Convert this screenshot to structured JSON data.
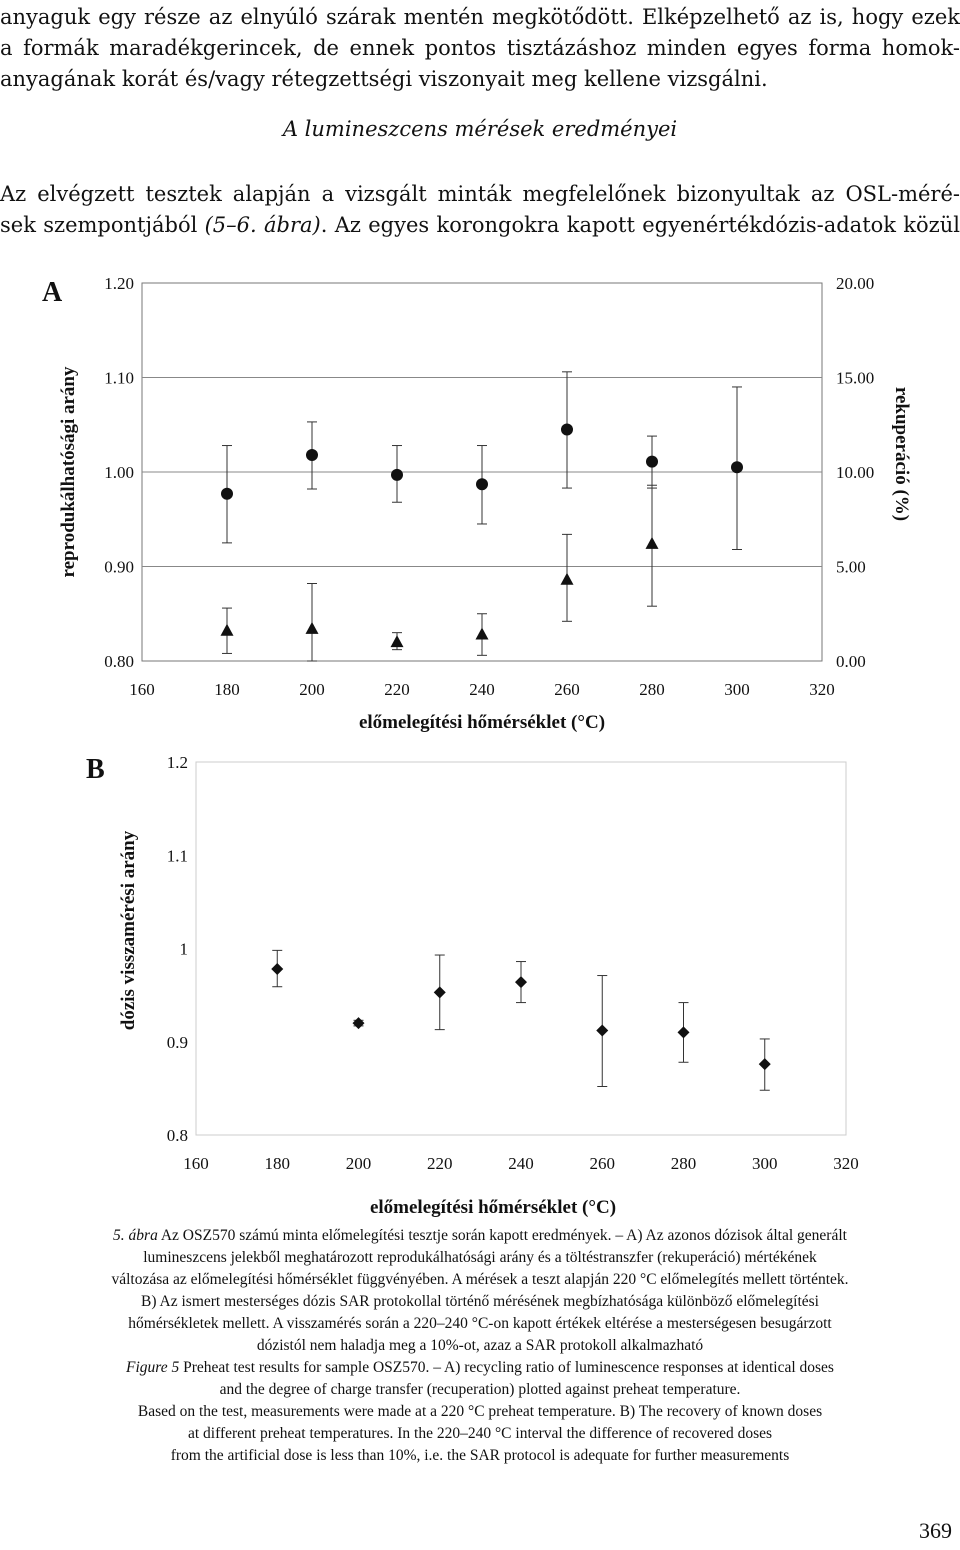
{
  "top_paragraph": {
    "lines": [
      "anyaguk egy része az elnyúló szárak mentén megkötődött. Elképzelhető az is, hogy ezek",
      "a formák maradékgerincek, de ennek pontos tisztázáshoz minden egyes forma homok-",
      "anyagának korát és/vagy rétegzettségi viszonyait meg kellene vizsgálni."
    ]
  },
  "section_heading": "A lumineszcens mérések eredményei",
  "second_paragraph": {
    "line1": "Az elvégzett tesztek alapján a vizsgált minták megfelelőnek bizonyultak az OSL-méré-",
    "line2_start": "sek szempontjából ",
    "line2_ref": "(5–6. ábra)",
    "line2_end": ". Az egyes korongokra kapott egyenértékdózis-adatok közül"
  },
  "chart_data": [
    {
      "type": "scatter",
      "panel_label": "A",
      "xlabel": "előmelegítési hőmérséklet (°C)",
      "ylabel": "reprodukálhatósági arány",
      "y2label": "rekuperáció (%)",
      "xlim": [
        160,
        320
      ],
      "xticks": [
        "160",
        "180",
        "200",
        "220",
        "240",
        "260",
        "280",
        "300",
        "320"
      ],
      "ylim": [
        0.8,
        1.2
      ],
      "yticks": [
        "0.80",
        "0.90",
        "1.00",
        "1.10",
        "1.20"
      ],
      "y2lim": [
        0,
        20
      ],
      "y2ticks": [
        "0.00",
        "5.00",
        "10.00",
        "15.00",
        "20.00"
      ],
      "grid": "horizontal",
      "series": [
        {
          "marker": "circle",
          "axis": "left",
          "points": [
            {
              "x": 180,
              "y": 0.977,
              "lo": 0.925,
              "hi": 1.028
            },
            {
              "x": 200,
              "y": 1.018,
              "lo": 0.982,
              "hi": 1.053
            },
            {
              "x": 220,
              "y": 0.997,
              "lo": 0.968,
              "hi": 1.028
            },
            {
              "x": 240,
              "y": 0.987,
              "lo": 0.945,
              "hi": 1.028
            },
            {
              "x": 260,
              "y": 1.045,
              "lo": 0.983,
              "hi": 1.106
            },
            {
              "x": 280,
              "y": 1.011,
              "lo": 0.983,
              "hi": 1.038
            },
            {
              "x": 300,
              "y": 1.005,
              "lo": 0.918,
              "hi": 1.09
            }
          ]
        },
        {
          "marker": "triangle",
          "axis": "right",
          "points": [
            {
              "x": 180,
              "y": 1.6,
              "lo": 0.4,
              "hi": 2.8
            },
            {
              "x": 200,
              "y": 1.7,
              "lo": 0.0,
              "hi": 4.1
            },
            {
              "x": 220,
              "y": 1.0,
              "lo": 0.6,
              "hi": 1.5
            },
            {
              "x": 240,
              "y": 1.4,
              "lo": 0.3,
              "hi": 2.5
            },
            {
              "x": 260,
              "y": 4.3,
              "lo": 2.1,
              "hi": 6.7
            },
            {
              "x": 280,
              "y": 6.2,
              "lo": 2.9,
              "hi": 9.3
            }
          ]
        }
      ]
    },
    {
      "type": "scatter",
      "panel_label": "B",
      "xlabel": "előmelegítési hőmérséklet (°C)",
      "ylabel": "dózis visszamérési arány",
      "xlim": [
        160,
        320
      ],
      "xticks": [
        "160",
        "180",
        "200",
        "220",
        "240",
        "260",
        "280",
        "300",
        "320"
      ],
      "ylim": [
        0.8,
        1.2
      ],
      "yticks": [
        "0.8",
        "0.9",
        "1",
        "1.1",
        "1.2"
      ],
      "grid": "none",
      "series": [
        {
          "marker": "diamond",
          "points": [
            {
              "x": 180,
              "y": 0.978,
              "lo": 0.959,
              "hi": 0.998
            },
            {
              "x": 200,
              "y": 0.92,
              "lo": 0.917,
              "hi": 0.923
            },
            {
              "x": 220,
              "y": 0.953,
              "lo": 0.913,
              "hi": 0.993
            },
            {
              "x": 240,
              "y": 0.964,
              "lo": 0.942,
              "hi": 0.986
            },
            {
              "x": 260,
              "y": 0.912,
              "lo": 0.852,
              "hi": 0.971
            },
            {
              "x": 280,
              "y": 0.91,
              "lo": 0.878,
              "hi": 0.942
            },
            {
              "x": 300,
              "y": 0.876,
              "lo": 0.848,
              "hi": 0.903
            }
          ]
        }
      ]
    }
  ],
  "caption": {
    "hu_label": "5. ábra",
    "hu_line1_rest": " Az OSZ570 számú minta előmelegítési tesztje során kapott eredmények. – A) Az azonos dózisok által generált",
    "hu_lines": [
      "lumineszcens jelekből meghatározott reprodukálhatósági arány és a töltéstranszfer (rekuperáció) mértékének",
      "változása az előmelegítési hőmérséklet függvényében. A mérések a teszt alapján 220 °C előmelegítés mellett történtek.",
      "B) Az ismert mesterséges dózis SAR protokollal történő mérésének megbízhatósága különböző előmelegítési",
      "hőmérsékletek mellett. A visszamérés során a 220–240 °C-on kapott értékek eltérése a mesterségesen besugárzott",
      "dózistól nem haladja meg a 10%-ot, azaz a SAR protokoll alkalmazható"
    ],
    "en_label": "Figure 5",
    "en_line1_rest": " Preheat test results for sample OSZ570. – A) recycling ratio of luminescence responses at identical doses",
    "en_lines": [
      "and the degree of charge transfer (recuperation) plotted against preheat temperature.",
      "Based on the test, measurements were made at a 220 °C preheat temperature. B) The recovery of known doses",
      "at different preheat temperatures. In the 220–240 °C interval the difference of recovered doses",
      "from the artificial dose is less than 10%, i.e. the SAR protocol is adequate for further measurements"
    ]
  },
  "page_number": "369"
}
